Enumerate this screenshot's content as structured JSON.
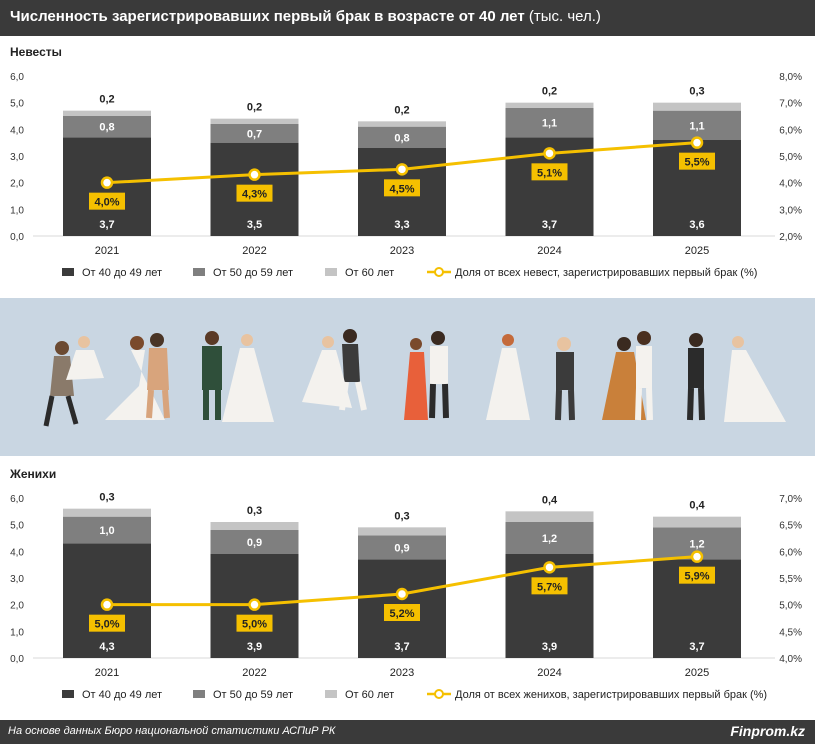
{
  "header": {
    "title": "Численность зарегистрировавших первый брак в возрасте от 40 лет",
    "unit": "(тыс. чел.)"
  },
  "colors": {
    "age_40_49": "#3b3b3b",
    "age_50_59": "#7f7f7f",
    "age_60_plus": "#c4c4c4",
    "share_line": "#f5c000",
    "header_bg": "#3a3a3a",
    "band_bg": "#c9d6e2"
  },
  "illustration": {
    "icon": "wedding-couples-illustration"
  },
  "footer": {
    "source": "На основе данных Бюро национальной статистики АСПиР РК",
    "brand": "Finprom.kz"
  },
  "chart_data": [
    {
      "type": "bar",
      "subtitle": "Невесты",
      "categories": [
        "2021",
        "2022",
        "2023",
        "2024",
        "2025"
      ],
      "ylim": [
        0,
        6
      ],
      "y_ticks": [
        "0,0",
        "1,0",
        "2,0",
        "3,0",
        "4,0",
        "5,0",
        "6,0"
      ],
      "y2lim": [
        2,
        8
      ],
      "y2_ticks": [
        "2,0%",
        "3,0%",
        "4,0%",
        "5,0%",
        "6,0%",
        "7,0%",
        "8,0%"
      ],
      "grid": false,
      "legend_position": "bottom",
      "series": [
        {
          "name": "От 40 до 49 лет",
          "kind": "bar",
          "values": [
            3.7,
            3.5,
            3.3,
            3.7,
            3.6
          ],
          "labels": [
            "3,7",
            "3,5",
            "3,3",
            "3,7",
            "3,6"
          ]
        },
        {
          "name": "От 50 до 59 лет",
          "kind": "bar",
          "values": [
            0.8,
            0.7,
            0.8,
            1.1,
            1.1
          ],
          "labels": [
            "0,8",
            "0,7",
            "0,8",
            "1,1",
            "1,1"
          ]
        },
        {
          "name": "От 60 лет",
          "kind": "bar",
          "values": [
            0.2,
            0.2,
            0.2,
            0.2,
            0.3
          ],
          "labels": [
            "0,2",
            "0,2",
            "0,2",
            "0,2",
            "0,3"
          ]
        },
        {
          "name": "Доля от всех невест, зарегистрировавших первый брак (%)",
          "kind": "line",
          "axis": "right",
          "values": [
            4.0,
            4.3,
            4.5,
            5.1,
            5.5
          ],
          "labels": [
            "4,0%",
            "4,3%",
            "4,5%",
            "5,1%",
            "5,5%"
          ]
        }
      ]
    },
    {
      "type": "bar",
      "subtitle": "Женихи",
      "categories": [
        "2021",
        "2022",
        "2023",
        "2024",
        "2025"
      ],
      "ylim": [
        0,
        6
      ],
      "y_ticks": [
        "0,0",
        "1,0",
        "2,0",
        "3,0",
        "4,0",
        "5,0",
        "6,0"
      ],
      "y2lim": [
        4,
        7
      ],
      "y2_ticks": [
        "4,0%",
        "4,5%",
        "5,0%",
        "5,5%",
        "6,0%",
        "6,5%",
        "7,0%"
      ],
      "grid": false,
      "legend_position": "bottom",
      "series": [
        {
          "name": "От 40 до 49 лет",
          "kind": "bar",
          "values": [
            4.3,
            3.9,
            3.7,
            3.9,
            3.7
          ],
          "labels": [
            "4,3",
            "3,9",
            "3,7",
            "3,9",
            "3,7"
          ]
        },
        {
          "name": "От 50 до 59 лет",
          "kind": "bar",
          "values": [
            1.0,
            0.9,
            0.9,
            1.2,
            1.2
          ],
          "labels": [
            "1,0",
            "0,9",
            "0,9",
            "1,2",
            "1,2"
          ]
        },
        {
          "name": "От 60 лет",
          "kind": "bar",
          "values": [
            0.3,
            0.3,
            0.3,
            0.4,
            0.4
          ],
          "labels": [
            "0,3",
            "0,3",
            "0,3",
            "0,4",
            "0,4"
          ]
        },
        {
          "name": "Доля от всех женихов, зарегистрировавших первый брак (%)",
          "kind": "line",
          "axis": "right",
          "values": [
            5.0,
            5.0,
            5.2,
            5.7,
            5.9
          ],
          "labels": [
            "5,0%",
            "5,0%",
            "5,2%",
            "5,7%",
            "5,9%"
          ]
        }
      ]
    }
  ]
}
